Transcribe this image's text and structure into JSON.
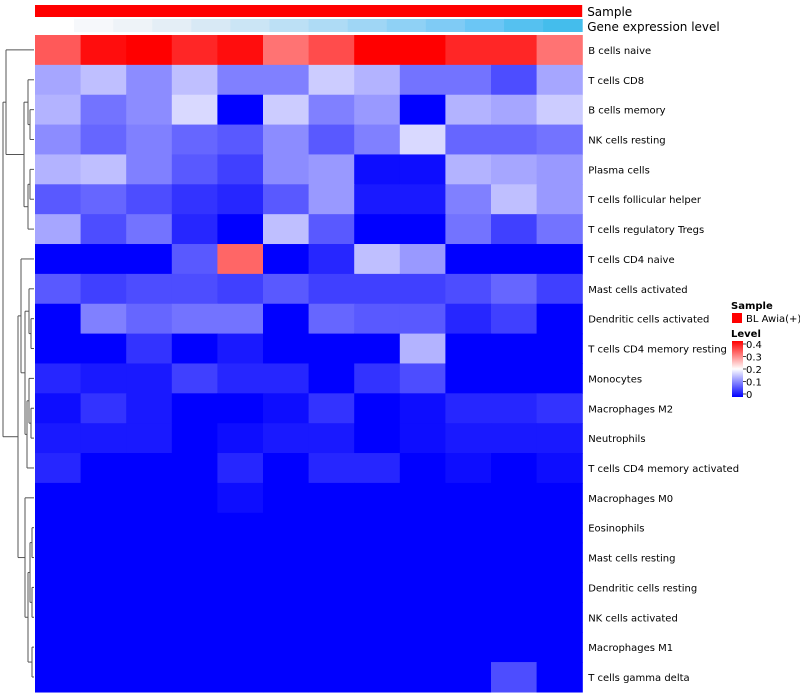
{
  "chart_data": {
    "type": "heatmap",
    "annotation_tracks": [
      {
        "name": "Sample",
        "color": "#ff0000"
      },
      {
        "name": "Gene expression level",
        "colors": [
          "#ffffff",
          "#f6f8fb",
          "#eef3f8",
          "#e4eef6",
          "#d8e9f5",
          "#cbe5f5",
          "#bce0f5",
          "#aedbf5",
          "#9fd6f5",
          "#8fd1f5",
          "#7fcbf5",
          "#6bc6f5",
          "#55c1f0",
          "#44bdec"
        ]
      }
    ],
    "rows": [
      "B cells naive",
      "T cells CD8",
      "B cells memory",
      "NK cells resting",
      "Plasma cells",
      "T cells follicular helper",
      "T cells regulatory  Tregs",
      "T cells CD4 naive",
      "Mast cells activated",
      "Dendritic cells activated",
      "T cells CD4 memory resting",
      "Monocytes",
      "Macrophages M2",
      "Neutrophils",
      "T cells CD4 memory activated",
      "Macrophages M0",
      "Eosinophils",
      "Mast cells resting",
      "Dendritic cells resting",
      "NK cells activated",
      "Macrophages M1",
      "T cells gamma delta"
    ],
    "values": [
      [
        0.33,
        0.39,
        0.4,
        0.37,
        0.39,
        0.31,
        0.34,
        0.4,
        0.4,
        0.37,
        0.37,
        0.31
      ],
      [
        0.13,
        0.15,
        0.11,
        0.15,
        0.1,
        0.1,
        0.16,
        0.14,
        0.09,
        0.09,
        0.06,
        0.13
      ],
      [
        0.14,
        0.09,
        0.11,
        0.17,
        0.0,
        0.16,
        0.1,
        0.12,
        0.0,
        0.14,
        0.13,
        0.16
      ],
      [
        0.11,
        0.08,
        0.1,
        0.08,
        0.07,
        0.11,
        0.07,
        0.1,
        0.17,
        0.08,
        0.08,
        0.09
      ],
      [
        0.14,
        0.15,
        0.1,
        0.07,
        0.05,
        0.11,
        0.12,
        0.01,
        0.01,
        0.14,
        0.13,
        0.12
      ],
      [
        0.07,
        0.08,
        0.06,
        0.04,
        0.03,
        0.07,
        0.12,
        0.02,
        0.02,
        0.1,
        0.15,
        0.12
      ],
      [
        0.13,
        0.06,
        0.09,
        0.03,
        0.0,
        0.15,
        0.07,
        0.0,
        0.0,
        0.09,
        0.05,
        0.09
      ],
      [
        0.0,
        0.0,
        0.0,
        0.07,
        0.32,
        0.0,
        0.03,
        0.15,
        0.12,
        0.0,
        0.0,
        0.0
      ],
      [
        0.07,
        0.05,
        0.06,
        0.06,
        0.05,
        0.07,
        0.05,
        0.05,
        0.05,
        0.06,
        0.08,
        0.05
      ],
      [
        0.0,
        0.1,
        0.08,
        0.09,
        0.09,
        0.0,
        0.08,
        0.07,
        0.07,
        0.03,
        0.05,
        0.0
      ],
      [
        0.0,
        0.0,
        0.04,
        0.0,
        0.02,
        0.0,
        0.0,
        0.0,
        0.14,
        0.0,
        0.0,
        0.0
      ],
      [
        0.03,
        0.02,
        0.02,
        0.05,
        0.03,
        0.03,
        0.0,
        0.04,
        0.06,
        0.0,
        0.0,
        0.0
      ],
      [
        0.01,
        0.04,
        0.02,
        0.0,
        0.0,
        0.01,
        0.04,
        0.0,
        0.01,
        0.03,
        0.03,
        0.04
      ],
      [
        0.02,
        0.02,
        0.02,
        0.0,
        0.01,
        0.02,
        0.02,
        0.0,
        0.01,
        0.02,
        0.02,
        0.02
      ],
      [
        0.03,
        0.0,
        0.0,
        0.0,
        0.03,
        0.0,
        0.03,
        0.03,
        0.0,
        0.01,
        0.0,
        0.01
      ],
      [
        0.0,
        0.0,
        0.0,
        0.0,
        0.01,
        0.0,
        0.0,
        0.0,
        0.0,
        0.0,
        0.0,
        0.0
      ],
      [
        0.0,
        0.0,
        0.0,
        0.0,
        0.0,
        0.0,
        0.0,
        0.0,
        0.0,
        0.0,
        0.0,
        0.0
      ],
      [
        0.0,
        0.0,
        0.0,
        0.0,
        0.0,
        0.0,
        0.0,
        0.0,
        0.0,
        0.0,
        0.0,
        0.0
      ],
      [
        0.0,
        0.0,
        0.0,
        0.0,
        0.0,
        0.0,
        0.0,
        0.0,
        0.0,
        0.0,
        0.0,
        0.0
      ],
      [
        0.0,
        0.0,
        0.0,
        0.0,
        0.0,
        0.0,
        0.0,
        0.0,
        0.0,
        0.0,
        0.0,
        0.0
      ],
      [
        0.0,
        0.0,
        0.0,
        0.0,
        0.0,
        0.0,
        0.0,
        0.0,
        0.0,
        0.0,
        0.0,
        0.0
      ],
      [
        0.0,
        0.0,
        0.0,
        0.0,
        0.0,
        0.0,
        0.0,
        0.0,
        0.0,
        0.0,
        0.06,
        0.0
      ]
    ],
    "color_scale": {
      "min": 0,
      "max": 0.4,
      "stops": [
        {
          "value": 0,
          "color": "#0000ff"
        },
        {
          "value": 0.2,
          "color": "#ffffff"
        },
        {
          "value": 0.4,
          "color": "#ff0000"
        }
      ]
    },
    "dendrogram": "rows",
    "legend": {
      "sample_title": "Sample",
      "sample_entry": "BL Awia(+)",
      "sample_color": "#ff0000",
      "level_title": "Level",
      "level_ticks": [
        "0.4",
        "0.3",
        "0.2",
        "0.1",
        "0"
      ],
      "position": "right"
    }
  }
}
